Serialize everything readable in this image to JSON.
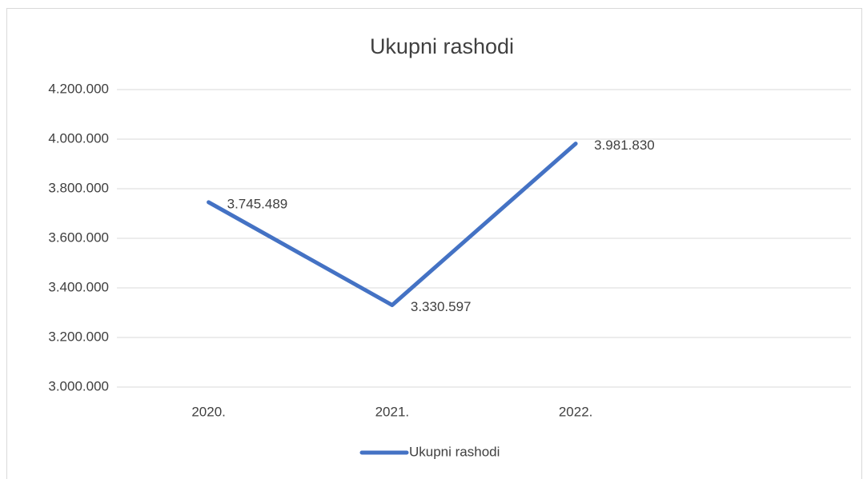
{
  "chart_data": {
    "type": "line",
    "title": "Ukupni rashodi",
    "categories": [
      "2020.",
      "2021.",
      "2022.",
      null
    ],
    "series": [
      {
        "name": "Ukupni rashodi",
        "color": "#4472c4",
        "values": [
          3745489,
          3330597,
          3981830,
          null
        ],
        "value_labels": [
          "3.745.489",
          "3.330.597",
          "3.981.830",
          null
        ]
      }
    ],
    "ylim": [
      3000000,
      4200000
    ],
    "yticks": [
      {
        "value": 3000000,
        "label": "3.000.000"
      },
      {
        "value": 3200000,
        "label": "3.200.000"
      },
      {
        "value": 3400000,
        "label": "3.400.000"
      },
      {
        "value": 3600000,
        "label": "3.600.000"
      },
      {
        "value": 3800000,
        "label": "3.800.000"
      },
      {
        "value": 4000000,
        "label": "4.000.000"
      },
      {
        "value": 4200000,
        "label": "4.200.000"
      }
    ],
    "grid": true,
    "legend": "bottom"
  }
}
